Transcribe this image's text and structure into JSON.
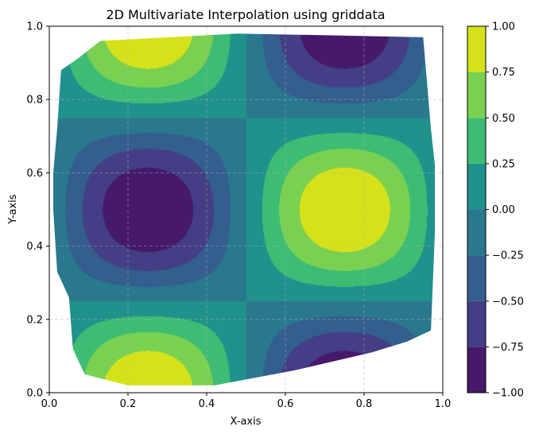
{
  "chart_data": {
    "type": "contourf",
    "title": "2D Multivariate Interpolation using griddata",
    "xlabel": "X-axis",
    "ylabel": "Y-axis",
    "xlim": [
      0.0,
      1.0
    ],
    "ylim": [
      0.0,
      1.0
    ],
    "x_ticks": [
      "0.0",
      "0.2",
      "0.4",
      "0.6",
      "0.8",
      "1.0"
    ],
    "y_ticks": [
      "0.0",
      "0.2",
      "0.4",
      "0.6",
      "0.8",
      "1.0"
    ],
    "grid": true,
    "function_shape": "interpolated field ~ sin(2*pi*x) * cos(2*pi*y) over scattered points (convex hull)",
    "hull_points": [
      [
        0.03,
        0.88
      ],
      [
        0.07,
        0.91
      ],
      [
        0.13,
        0.96
      ],
      [
        0.48,
        0.98
      ],
      [
        0.95,
        0.97
      ],
      [
        0.97,
        0.72
      ],
      [
        0.98,
        0.62
      ],
      [
        0.98,
        0.44
      ],
      [
        0.97,
        0.17
      ],
      [
        0.91,
        0.14
      ],
      [
        0.82,
        0.11
      ],
      [
        0.62,
        0.06
      ],
      [
        0.42,
        0.02
      ],
      [
        0.2,
        0.02
      ],
      [
        0.09,
        0.05
      ],
      [
        0.06,
        0.12
      ],
      [
        0.05,
        0.26
      ],
      [
        0.02,
        0.33
      ],
      [
        0.01,
        0.5
      ],
      [
        0.01,
        0.6
      ],
      [
        0.02,
        0.72
      ]
    ],
    "colorbar": {
      "levels": [
        -1.0,
        -0.75,
        -0.5,
        -0.25,
        0.0,
        0.25,
        0.5,
        0.75,
        1.0
      ],
      "tick_labels": [
        "−1.00",
        "−0.75",
        "−0.50",
        "−0.25",
        "0.00",
        "0.25",
        "0.50",
        "0.75",
        "1.00"
      ],
      "band_colors": [
        "#46196a",
        "#433e85",
        "#345e8d",
        "#29788e",
        "#21918c",
        "#3dbc74",
        "#7ad151",
        "#d5e21a"
      ]
    }
  }
}
